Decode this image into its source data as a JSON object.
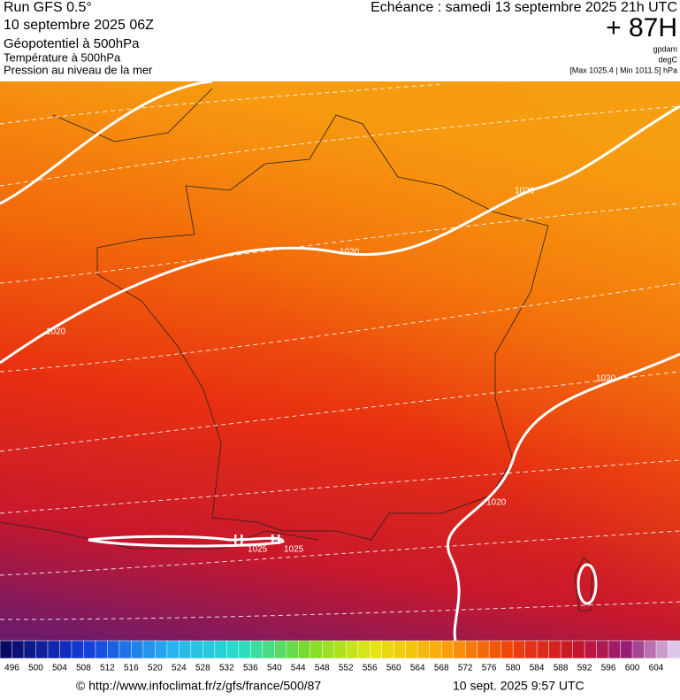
{
  "header": {
    "run": "Run GFS 0.5°",
    "date": "10 septembre 2025 06Z",
    "echeance": "Echéance : samedi 13 septembre 2025 21h UTC",
    "lead": "+ 87H",
    "layers": [
      "Géopotentiel à 500hPa",
      "Température à 500hPa",
      "Pression au niveau de la mer"
    ],
    "units": [
      "gpdam",
      "degC"
    ],
    "range": "[Max 1025.4 | Min 1011.5] hPa"
  },
  "map": {
    "isobar_labels": [
      "1020",
      "1020",
      "1020",
      "1020",
      "1020",
      "1025",
      "1025"
    ],
    "highs": [
      "H",
      "H"
    ]
  },
  "colorbar": {
    "labels": [
      496,
      500,
      504,
      508,
      512,
      516,
      520,
      524,
      528,
      532,
      536,
      540,
      544,
      548,
      552,
      556,
      560,
      564,
      568,
      572,
      576,
      580,
      584,
      588,
      592,
      596,
      600,
      604
    ]
  },
  "footer": {
    "url": "© http://www.infoclimat.fr/z/gfs/france/500/87",
    "timestamp": "10 sept. 2025  9:57 UTC"
  }
}
